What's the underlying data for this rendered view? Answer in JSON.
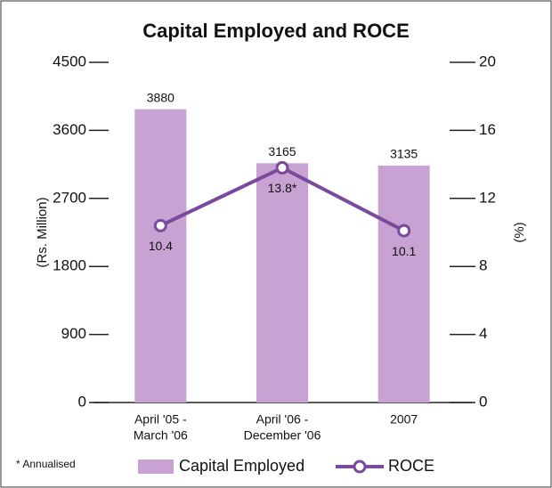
{
  "chart_data": {
    "type": "bar_line",
    "title": "Capital Employed and ROCE",
    "categories": [
      [
        "April '05 -",
        "March '06"
      ],
      [
        "April '06 -",
        "December '06"
      ],
      [
        "2007"
      ]
    ],
    "series": [
      {
        "name": "Capital Employed",
        "color": "#c8a2d2",
        "type": "bar",
        "axis": "y",
        "values": [
          3880,
          3165,
          3135
        ]
      },
      {
        "name": "ROCE",
        "color": "#7a4a9e",
        "type": "line",
        "axis": "y2",
        "values": [
          10.4,
          13.8,
          10.1
        ],
        "value_labels": [
          "10.4",
          "13.8*",
          "10.1"
        ]
      }
    ],
    "ylabel": "(Rs. Million)",
    "y2label": "(%)",
    "ylim": [
      0,
      4500
    ],
    "yticks": [
      0,
      900,
      1800,
      2700,
      3600,
      4500
    ],
    "y2lim": [
      0,
      20
    ],
    "y2ticks": [
      0,
      4,
      8,
      12,
      16,
      20
    ],
    "footnote": "* Annualised",
    "legend": "bottom"
  }
}
